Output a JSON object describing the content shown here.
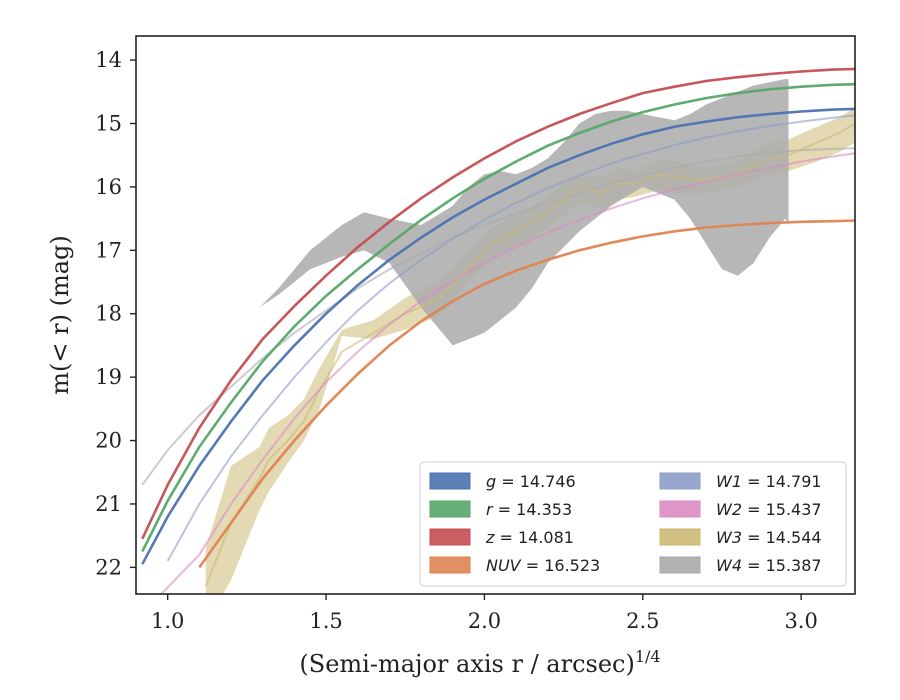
{
  "chart_data": {
    "type": "line",
    "xlabel": "(Semi-major axis r / arcsec)",
    "xlabel_sup": "1/4",
    "ylabel": "m(< r) (mag)",
    "xlim": [
      0.9,
      3.17
    ],
    "ylim": [
      22.42,
      13.62
    ],
    "y_inverted": true,
    "x_ticks": [
      1.0,
      1.5,
      2.0,
      2.5,
      3.0
    ],
    "x_tick_labels": [
      "1.0",
      "1.5",
      "2.0",
      "2.5",
      "3.0"
    ],
    "y_ticks": [
      14,
      15,
      16,
      17,
      18,
      19,
      20,
      21,
      22
    ],
    "y_tick_labels": [
      "14",
      "15",
      "16",
      "17",
      "18",
      "19",
      "20",
      "21",
      "22"
    ],
    "grid": false,
    "legend_position": "lower-right",
    "series": [
      {
        "name": "g = 14.746",
        "band": "g",
        "total": "14.746",
        "color": "#4c72b0",
        "x": [
          0.92,
          1.0,
          1.1,
          1.2,
          1.3,
          1.4,
          1.5,
          1.6,
          1.7,
          1.8,
          1.9,
          2.0,
          2.1,
          2.2,
          2.3,
          2.4,
          2.5,
          2.6,
          2.7,
          2.8,
          2.9,
          3.0,
          3.1,
          3.17
        ],
        "y": [
          21.95,
          21.2,
          20.4,
          19.7,
          19.05,
          18.5,
          18.0,
          17.55,
          17.15,
          16.8,
          16.48,
          16.2,
          15.95,
          15.7,
          15.5,
          15.32,
          15.17,
          15.05,
          14.97,
          14.9,
          14.85,
          14.81,
          14.78,
          14.77
        ]
      },
      {
        "name": "r = 14.353",
        "band": "r",
        "total": "14.353",
        "color": "#55a868",
        "x": [
          0.92,
          1.0,
          1.1,
          1.2,
          1.3,
          1.4,
          1.5,
          1.6,
          1.7,
          1.8,
          1.9,
          2.0,
          2.1,
          2.2,
          2.3,
          2.4,
          2.5,
          2.6,
          2.7,
          2.8,
          2.9,
          3.0,
          3.1,
          3.17
        ],
        "y": [
          21.75,
          20.95,
          20.1,
          19.4,
          18.75,
          18.2,
          17.72,
          17.3,
          16.9,
          16.52,
          16.18,
          15.87,
          15.6,
          15.35,
          15.15,
          14.97,
          14.82,
          14.7,
          14.6,
          14.52,
          14.46,
          14.42,
          14.39,
          14.38
        ]
      },
      {
        "name": "z = 14.081",
        "band": "z",
        "total": "14.081",
        "color": "#c44e52",
        "x": [
          0.92,
          1.0,
          1.1,
          1.2,
          1.3,
          1.4,
          1.5,
          1.6,
          1.7,
          1.8,
          1.9,
          2.0,
          2.1,
          2.2,
          2.3,
          2.4,
          2.5,
          2.6,
          2.7,
          2.8,
          2.9,
          3.0,
          3.1,
          3.17
        ],
        "y": [
          21.55,
          20.7,
          19.8,
          19.05,
          18.4,
          17.88,
          17.4,
          16.95,
          16.55,
          16.18,
          15.85,
          15.55,
          15.28,
          15.05,
          14.85,
          14.68,
          14.52,
          14.42,
          14.33,
          14.27,
          14.22,
          14.18,
          14.15,
          14.14
        ]
      },
      {
        "name": "NUV = 16.523",
        "band": "NUV",
        "total": "16.523",
        "color": "#dd8452",
        "x": [
          1.1,
          1.2,
          1.3,
          1.4,
          1.5,
          1.6,
          1.7,
          1.8,
          1.9,
          2.0,
          2.1,
          2.2,
          2.3,
          2.4,
          2.5,
          2.6,
          2.7,
          2.8,
          2.9,
          3.0,
          3.1,
          3.17
        ],
        "y": [
          22.0,
          21.3,
          20.6,
          20.0,
          19.45,
          18.95,
          18.5,
          18.12,
          17.8,
          17.53,
          17.32,
          17.15,
          17.0,
          16.88,
          16.78,
          16.7,
          16.64,
          16.6,
          16.57,
          16.55,
          16.54,
          16.53
        ]
      },
      {
        "name": "W1 = 14.791",
        "band": "W1",
        "total": "14.791",
        "color": "#8c9dc9",
        "x": [
          1.0,
          1.1,
          1.2,
          1.3,
          1.4,
          1.5,
          1.6,
          1.7,
          1.8,
          1.9,
          2.0,
          2.1,
          2.2,
          2.3,
          2.4,
          2.5,
          2.6,
          2.7,
          2.8,
          2.9,
          3.0,
          3.1,
          3.17
        ],
        "y": [
          21.9,
          21.0,
          20.25,
          19.6,
          19.0,
          18.45,
          17.95,
          17.52,
          17.15,
          16.82,
          16.52,
          16.25,
          16.02,
          15.82,
          15.63,
          15.48,
          15.34,
          15.22,
          15.12,
          15.04,
          14.97,
          14.91,
          14.87
        ]
      },
      {
        "name": "W2 = 15.437",
        "band": "W2",
        "total": "15.437",
        "color": "#da8bc3",
        "x": [
          0.98,
          1.1,
          1.2,
          1.3,
          1.4,
          1.5,
          1.6,
          1.7,
          1.8,
          1.9,
          2.0,
          2.1,
          2.2,
          2.3,
          2.4,
          2.5,
          2.6,
          2.7,
          2.8,
          2.9,
          3.0,
          3.1,
          3.17
        ],
        "y": [
          22.42,
          21.8,
          21.0,
          20.3,
          19.65,
          19.08,
          18.6,
          18.17,
          17.8,
          17.48,
          17.2,
          16.95,
          16.72,
          16.52,
          16.34,
          16.18,
          16.04,
          15.92,
          15.8,
          15.7,
          15.6,
          15.52,
          15.47
        ]
      },
      {
        "name": "W3 = 14.544",
        "band": "W3",
        "total": "14.544",
        "color": "#ccb974",
        "x": [
          1.12,
          1.2,
          1.29,
          1.32,
          1.38,
          1.43,
          1.48,
          1.55,
          1.65,
          1.75,
          1.85,
          1.9,
          1.95,
          2.02,
          2.1,
          2.2,
          2.3,
          2.37,
          2.42,
          2.48,
          2.55,
          2.6,
          2.7,
          2.8,
          2.9,
          2.96,
          3.05,
          3.12,
          3.17
        ],
        "y": [
          22.3,
          21.3,
          20.6,
          20.3,
          20.0,
          19.7,
          19.2,
          18.6,
          18.3,
          18.0,
          17.78,
          17.55,
          17.25,
          16.9,
          16.7,
          16.4,
          16.0,
          16.1,
          15.95,
          15.95,
          15.8,
          15.85,
          15.9,
          15.8,
          15.55,
          15.5,
          15.3,
          15.15,
          15.0
        ],
        "band_low": [
          22.9,
          22.2,
          21.1,
          20.8,
          20.35,
          20.0,
          19.5,
          18.35,
          18.4,
          18.25,
          18.05,
          17.8,
          17.5,
          17.15,
          16.95,
          16.65,
          16.25,
          16.35,
          16.2,
          16.15,
          16.05,
          16.1,
          16.1,
          16.0,
          15.8,
          15.75,
          15.6,
          15.45,
          15.3
        ],
        "band_high": [
          21.7,
          20.4,
          20.1,
          19.8,
          19.6,
          19.35,
          18.85,
          18.25,
          18.1,
          17.75,
          17.5,
          17.3,
          17.0,
          16.65,
          16.45,
          16.15,
          15.8,
          15.85,
          15.7,
          15.75,
          15.55,
          15.6,
          15.7,
          15.6,
          15.3,
          15.25,
          15.05,
          14.9,
          14.75
        ]
      },
      {
        "name": "W4 = 15.387",
        "band": "W4",
        "total": "15.387",
        "color": "#aaaaaa",
        "x": [
          0.92,
          1.0,
          1.1,
          1.2,
          1.3,
          1.4,
          1.5,
          1.6,
          1.7,
          1.8,
          1.9,
          2.0,
          2.1,
          2.2,
          2.3,
          2.4,
          2.5,
          2.6,
          2.7,
          2.8,
          2.9,
          3.0,
          3.1,
          3.17
        ],
        "y": [
          20.7,
          20.15,
          19.6,
          19.15,
          18.7,
          18.3,
          17.95,
          17.6,
          17.3,
          17.05,
          16.8,
          16.6,
          16.42,
          16.25,
          16.1,
          15.95,
          15.82,
          15.7,
          15.6,
          15.52,
          15.46,
          15.42,
          15.4,
          15.39
        ],
        "band_x": [
          1.29,
          1.35,
          1.45,
          1.55,
          1.62,
          1.7,
          1.8,
          1.9,
          1.95,
          2.0,
          2.05,
          2.1,
          2.15,
          2.2,
          2.25,
          2.3,
          2.35,
          2.4,
          2.45,
          2.5,
          2.55,
          2.6,
          2.65,
          2.7,
          2.75,
          2.8,
          2.85,
          2.9,
          2.95,
          2.96
        ],
        "band_low": [
          17.9,
          17.7,
          17.3,
          17.1,
          17.0,
          17.2,
          17.9,
          18.5,
          18.4,
          18.3,
          18.1,
          17.9,
          17.6,
          17.2,
          16.95,
          16.7,
          16.5,
          16.3,
          16.15,
          16.0,
          16.1,
          16.2,
          16.5,
          16.9,
          17.3,
          17.4,
          17.2,
          16.8,
          16.5,
          16.6
        ],
        "band_high": [
          17.9,
          17.6,
          17.0,
          16.6,
          16.4,
          16.5,
          16.6,
          16.3,
          16.0,
          15.8,
          15.75,
          15.8,
          15.7,
          15.55,
          15.3,
          15.0,
          14.85,
          14.8,
          14.8,
          14.85,
          14.9,
          14.95,
          14.85,
          14.7,
          14.6,
          14.5,
          14.4,
          14.35,
          14.3,
          14.3
        ]
      }
    ]
  }
}
